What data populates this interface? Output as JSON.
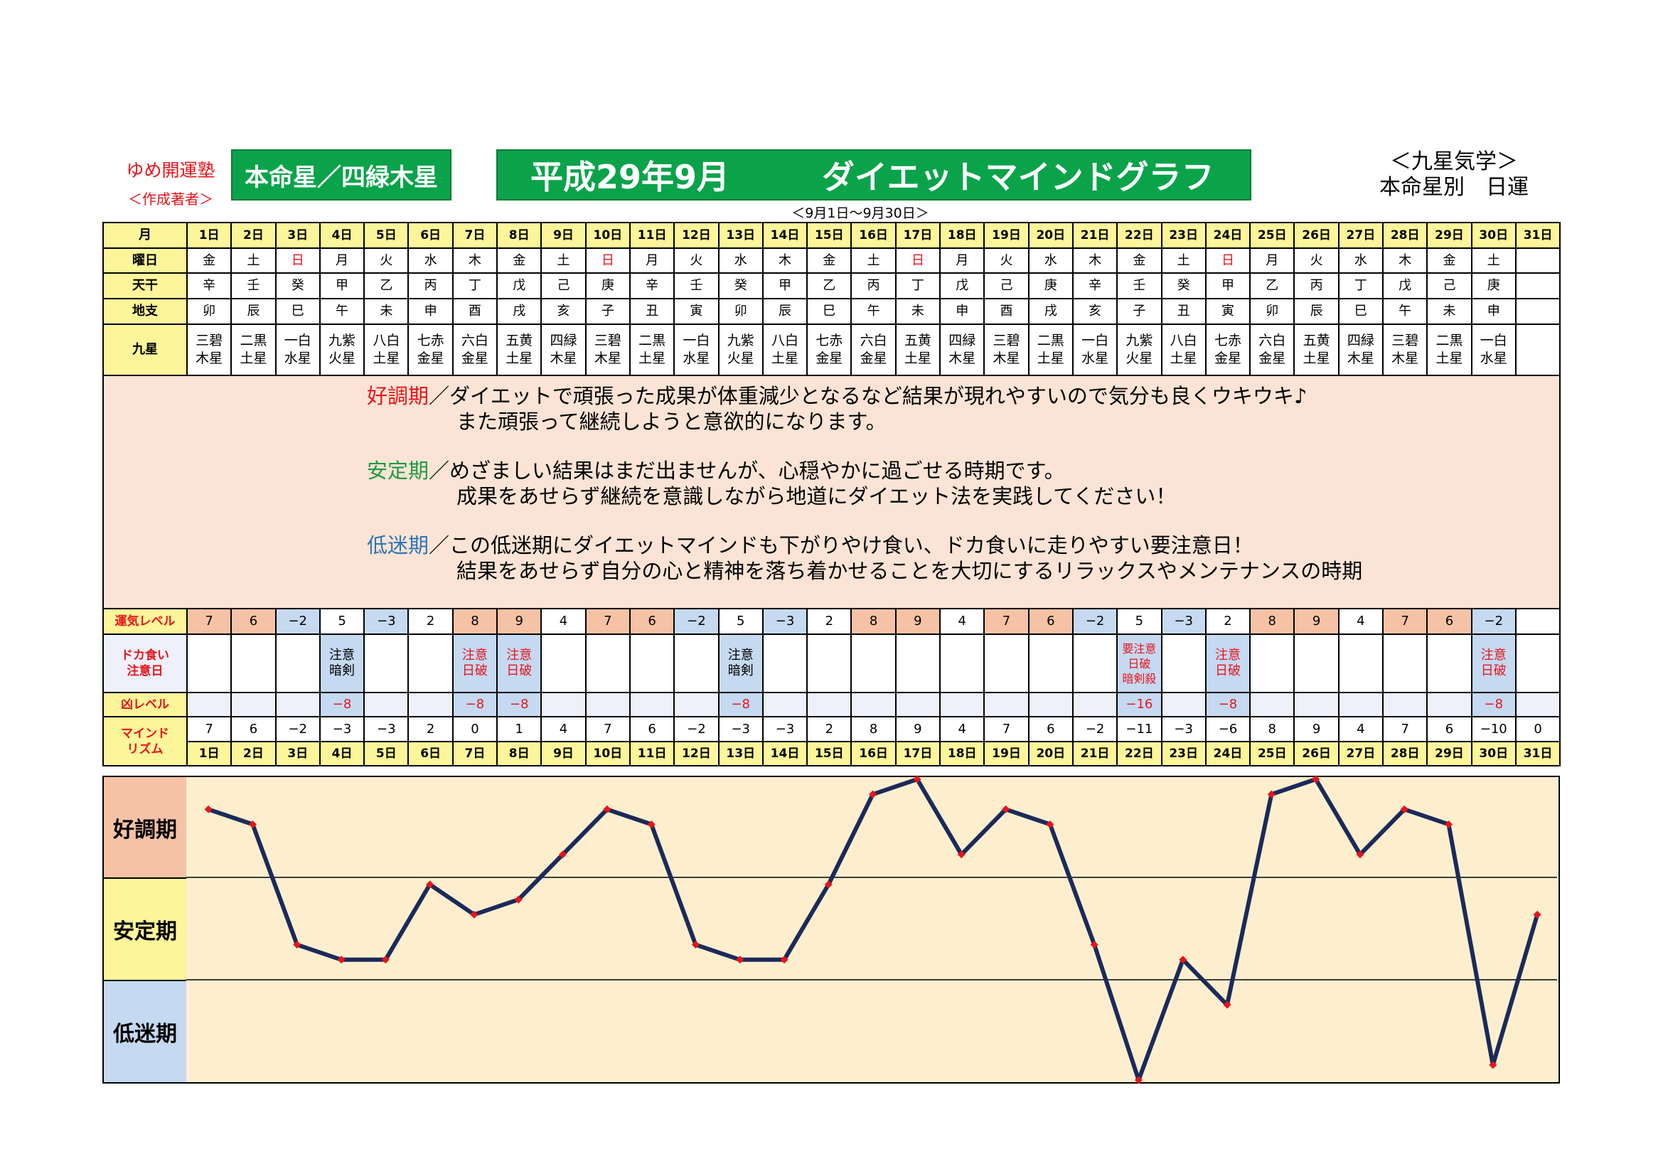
{
  "header": {
    "org": "ゆめ開運塾",
    "author": "＜作成著者＞",
    "honmei_box": "本命星／四緑木星",
    "title_left": "平成29年9月",
    "title_right": "ダイエットマインドグラフ",
    "kyusei_line1": "＜九星気学＞",
    "kyusei_line2": "本命星別　日運",
    "period": "＜9月1日～9月30日＞"
  },
  "labels": {
    "month": "月",
    "weekday": "曜日",
    "tenkan": "天干",
    "chishi": "地支",
    "kyusei": "九星",
    "unki": "運気レベル",
    "dokagui1": "ドカ食い",
    "dokagui2": "注意日",
    "kyo": "凶レベル",
    "mind1": "マインド",
    "mind2": "リズム"
  },
  "days": [
    "1日",
    "2日",
    "3日",
    "4日",
    "5日",
    "6日",
    "7日",
    "8日",
    "9日",
    "10日",
    "11日",
    "12日",
    "13日",
    "14日",
    "15日",
    "16日",
    "17日",
    "18日",
    "19日",
    "20日",
    "21日",
    "22日",
    "23日",
    "24日",
    "25日",
    "26日",
    "27日",
    "28日",
    "29日",
    "30日",
    "31日"
  ],
  "weekdays": [
    "金",
    "土",
    "日",
    "月",
    "火",
    "水",
    "木",
    "金",
    "土",
    "日",
    "月",
    "火",
    "水",
    "木",
    "金",
    "土",
    "日",
    "月",
    "火",
    "水",
    "木",
    "金",
    "土",
    "日",
    "月",
    "火",
    "水",
    "木",
    "金",
    "土",
    ""
  ],
  "tenkan": [
    "辛",
    "壬",
    "癸",
    "甲",
    "乙",
    "丙",
    "丁",
    "戊",
    "己",
    "庚",
    "辛",
    "壬",
    "癸",
    "甲",
    "乙",
    "丙",
    "丁",
    "戊",
    "己",
    "庚",
    "辛",
    "壬",
    "癸",
    "甲",
    "乙",
    "丙",
    "丁",
    "戊",
    "己",
    "庚",
    ""
  ],
  "chishi": [
    "卯",
    "辰",
    "巳",
    "午",
    "未",
    "申",
    "酉",
    "戌",
    "亥",
    "子",
    "丑",
    "寅",
    "卯",
    "辰",
    "巳",
    "午",
    "未",
    "申",
    "酉",
    "戌",
    "亥",
    "子",
    "丑",
    "寅",
    "卯",
    "辰",
    "巳",
    "午",
    "未",
    "申",
    ""
  ],
  "kyusei_top": [
    "三碧",
    "二黒",
    "一白",
    "九紫",
    "八白",
    "七赤",
    "六白",
    "五黄",
    "四緑",
    "三碧",
    "二黒",
    "一白",
    "九紫",
    "八白",
    "七赤",
    "六白",
    "五黄",
    "四緑",
    "三碧",
    "二黒",
    "一白",
    "九紫",
    "八白",
    "七赤",
    "六白",
    "五黄",
    "四緑",
    "三碧",
    "二黒",
    "一白",
    ""
  ],
  "kyusei_bottom": [
    "木星",
    "土星",
    "水星",
    "火星",
    "土星",
    "金星",
    "金星",
    "土星",
    "木星",
    "木星",
    "土星",
    "水星",
    "火星",
    "土星",
    "金星",
    "金星",
    "土星",
    "木星",
    "木星",
    "土星",
    "水星",
    "火星",
    "土星",
    "金星",
    "金星",
    "土星",
    "木星",
    "木星",
    "土星",
    "水星",
    ""
  ],
  "description": {
    "good_term": "好調期",
    "good_line1": "／ダイエットで頑張った成果が体重減少となるなど結果が現れやすいので気分も良くウキウキ♪",
    "good_line2": "また頑張って継続しようと意欲的になります。",
    "stable_term": "安定期",
    "stable_line1": "／めざましい結果はまだ出ませんが、心穏やかに過ごせる時期です。",
    "stable_line2": "成果をあせらず継続を意識しながら地道にダイエット法を実践してください！",
    "low_term": "低迷期",
    "low_line1": "／この低迷期にダイエットマインドも下がりやけ食い、ドカ食いに走りやすい要注意日！",
    "low_line2": "結果をあせらず自分の心と精神を落ち着かせることを大切にするリラックスやメンテナンスの時期"
  },
  "unki": [
    "7",
    "6",
    "−2",
    "5",
    "−3",
    "2",
    "8",
    "9",
    "4",
    "7",
    "6",
    "−2",
    "5",
    "−3",
    "2",
    "8",
    "9",
    "4",
    "7",
    "6",
    "−2",
    "5",
    "−3",
    "2",
    "8",
    "9",
    "4",
    "7",
    "6",
    "−2",
    ""
  ],
  "dokagui": [
    [
      "",
      ""
    ],
    [
      "",
      ""
    ],
    [
      "",
      ""
    ],
    [
      "注意",
      "暗剣"
    ],
    [
      "",
      ""
    ],
    [
      "",
      ""
    ],
    [
      "注意",
      "日破"
    ],
    [
      "注意",
      "日破"
    ],
    [
      "",
      ""
    ],
    [
      "",
      ""
    ],
    [
      "",
      ""
    ],
    [
      "",
      ""
    ],
    [
      "注意",
      "暗剣"
    ],
    [
      "",
      ""
    ],
    [
      "",
      ""
    ],
    [
      "",
      ""
    ],
    [
      "",
      ""
    ],
    [
      "",
      ""
    ],
    [
      "",
      ""
    ],
    [
      "",
      ""
    ],
    [
      "",
      ""
    ],
    [
      "要注意",
      "日破",
      "暗剣殺"
    ],
    [
      "",
      ""
    ],
    [
      "注意",
      "日破"
    ],
    [
      "",
      ""
    ],
    [
      "",
      ""
    ],
    [
      "",
      ""
    ],
    [
      "",
      ""
    ],
    [
      "",
      ""
    ],
    [
      "注意",
      "日破"
    ],
    [
      "",
      ""
    ]
  ],
  "kyo": [
    "",
    "",
    "",
    "−8",
    "",
    "",
    "−8",
    "−8",
    "",
    "",
    "",
    "",
    "−8",
    "",
    "",
    "",
    "",
    "",
    "",
    "",
    "",
    "−16",
    "",
    "−8",
    "",
    "",
    "",
    "",
    "",
    "−8",
    ""
  ],
  "mind": [
    "7",
    "6",
    "−2",
    "−3",
    "−3",
    "2",
    "0",
    "1",
    "4",
    "7",
    "6",
    "−2",
    "−3",
    "−3",
    "2",
    "8",
    "9",
    "4",
    "7",
    "6",
    "−2",
    "−11",
    "−3",
    "−6",
    "8",
    "9",
    "4",
    "7",
    "6",
    "−10",
    "0"
  ],
  "bands": {
    "good": "好調期",
    "stable": "安定期",
    "low": "低迷期"
  },
  "colors": {
    "line": "#1b2a5a",
    "marker": "#e8141b",
    "good": "#f6c2a5",
    "stable": "#fcf59a",
    "low": "#c5d9f1",
    "plot_bg": "#fdefce",
    "accent_green": "#0aa34a"
  },
  "chart_data": {
    "type": "line",
    "categories": [
      "1日",
      "2日",
      "3日",
      "4日",
      "5日",
      "6日",
      "7日",
      "8日",
      "9日",
      "10日",
      "11日",
      "12日",
      "13日",
      "14日",
      "15日",
      "16日",
      "17日",
      "18日",
      "19日",
      "20日",
      "21日",
      "22日",
      "23日",
      "24日",
      "25日",
      "26日",
      "27日",
      "28日",
      "29日",
      "30日",
      "31日"
    ],
    "series": [
      {
        "values": [
          7,
          6,
          -2,
          -3,
          -3,
          2,
          0,
          1,
          4,
          7,
          6,
          -2,
          -3,
          -3,
          2,
          8,
          9,
          4,
          7,
          6,
          -2,
          -11,
          -3,
          -6,
          8,
          9,
          4,
          7,
          6,
          -10,
          0
        ]
      }
    ],
    "ylim": [
      -11,
      9
    ],
    "grid": true
  }
}
